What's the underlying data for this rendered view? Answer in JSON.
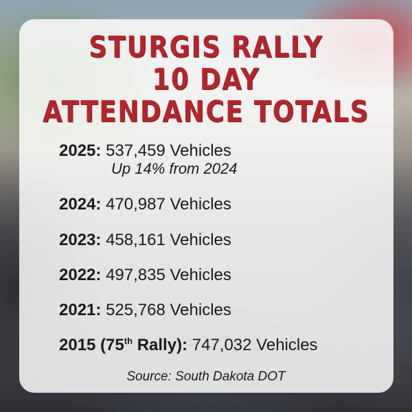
{
  "title": {
    "lines": [
      "STURGIS RALLY",
      "10 DAY",
      "ATTENDANCE TOTALS"
    ]
  },
  "entries": [
    {
      "label": "2025:",
      "value": "537,459 Vehicles",
      "note": "Up 14% from 2024"
    },
    {
      "label": "2024:",
      "value": "470,987 Vehicles"
    },
    {
      "label": "2023:",
      "value": "458,161 Vehicles"
    },
    {
      "label": "2022:",
      "value": "497,835 Vehicles"
    },
    {
      "label": "2021:",
      "value": "525,768 Vehicles"
    },
    {
      "label": "2015 (75",
      "label_superscript": "th",
      "label_suffix": "Rally):",
      "value": "747,032 Vehicles"
    }
  ],
  "source": "Source: South Dakota DOT"
}
